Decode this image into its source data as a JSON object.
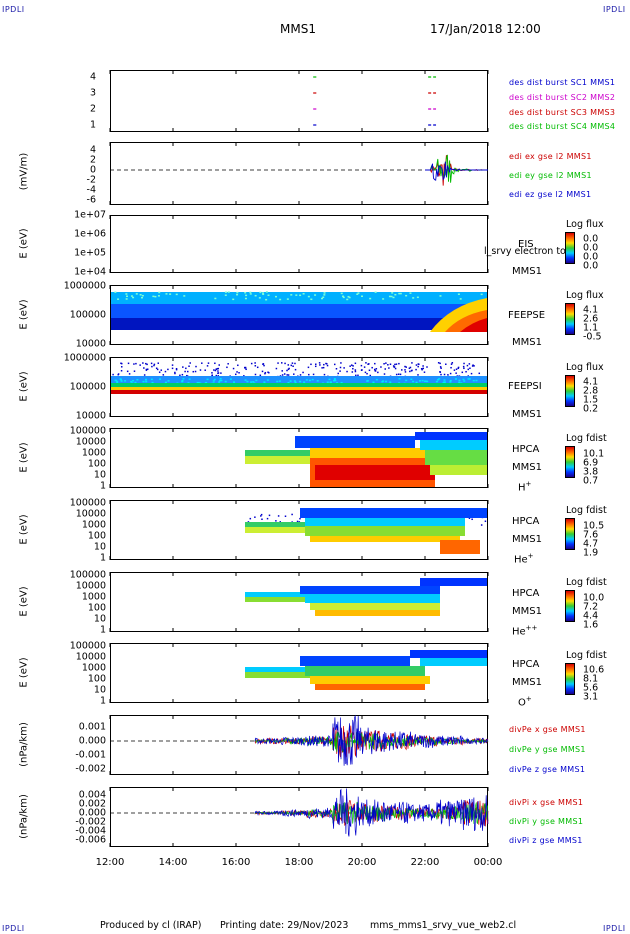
{
  "header": {
    "corner_tl": "IPDLI",
    "corner_tr": "IPDLI",
    "corner_bl": "IPDLI",
    "corner_br": "IPDLI",
    "spacecraft": "MMS1",
    "datetime": "17/Jan/2018 12:00"
  },
  "footer": {
    "produced_by": "Produced by cl (IRAP)",
    "printing_date": "Printing date: 29/Nov/2023",
    "product": "mms_mms1_srvy_vue_web2.cl"
  },
  "x_axis": {
    "ticks": [
      "12:00",
      "14:00",
      "16:00",
      "18:00",
      "20:00",
      "22:00",
      "00:00"
    ],
    "range_hours": [
      12,
      24
    ]
  },
  "panels": {
    "p1": {
      "yticks": [
        "4",
        "3",
        "2",
        "1"
      ],
      "legend": [
        "des dist burst SC1 MMS1",
        "des dist burst SC2 MMS2",
        "des dist burst SC3 MMS3",
        "des dist burst SC4 MMS4"
      ],
      "legend_colors": [
        "#0000cc",
        "#cc00cc",
        "#cc0000",
        "#00bb00"
      ]
    },
    "p2": {
      "ylabel": "(mV/m)",
      "yticks": [
        "4",
        "2",
        "0",
        "-2",
        "-4",
        "-6"
      ],
      "legend": [
        "edi ex gse l2 MMS1",
        "edi ey gse l2 MMS1",
        "edi ez gse l2 MMS1"
      ],
      "legend_colors": [
        "#cc0000",
        "#00bb00",
        "#0000cc"
      ]
    },
    "p3": {
      "ylabel": "E (eV)",
      "yticks": [
        "1e+07",
        "1e+06",
        "1e+05",
        "1e+04"
      ],
      "instrument": "EIS",
      "overlay": "l_srvy electron to",
      "spacecraft": "MMS1",
      "cb_title": "Log flux",
      "cb_values": [
        "0.0",
        "0.0",
        "0.0",
        "0.0"
      ]
    },
    "p4": {
      "ylabel": "E (eV)",
      "yticks": [
        "1000000",
        "100000",
        "10000"
      ],
      "instrument": "FEEPSE",
      "spacecraft": "MMS1",
      "cb_title": "Log flux",
      "cb_values": [
        "4.1",
        "2.6",
        "1.1",
        "-0.5"
      ]
    },
    "p5": {
      "ylabel": "E (eV)",
      "yticks": [
        "1000000",
        "100000",
        "10000"
      ],
      "instrument": "FEEPSI",
      "spacecraft": "MMS1",
      "cb_title": "Log flux",
      "cb_values": [
        "4.1",
        "2.8",
        "1.5",
        "0.2"
      ]
    },
    "p6": {
      "ylabel": "E (eV)",
      "yticks": [
        "100000",
        "10000",
        "1000",
        "100",
        "10",
        "1"
      ],
      "instrument": "HPCA",
      "spacecraft": "MMS1",
      "species": "H",
      "species_sup": "+",
      "cb_title": "Log fdist",
      "cb_values": [
        "10.1",
        "6.9",
        "3.8",
        "0.7"
      ]
    },
    "p7": {
      "ylabel": "E (eV)",
      "yticks": [
        "100000",
        "10000",
        "1000",
        "100",
        "10",
        "1"
      ],
      "instrument": "HPCA",
      "spacecraft": "MMS1",
      "species": "He",
      "species_sup": "+",
      "cb_title": "Log fdist",
      "cb_values": [
        "10.5",
        "7.6",
        "4.7",
        "1.9"
      ]
    },
    "p8": {
      "ylabel": "E (eV)",
      "yticks": [
        "100000",
        "10000",
        "1000",
        "100",
        "10",
        "1"
      ],
      "instrument": "HPCA",
      "spacecraft": "MMS1",
      "species": "He",
      "species_sup": "++",
      "cb_title": "Log fdist",
      "cb_values": [
        "10.0",
        "7.2",
        "4.4",
        "1.6"
      ]
    },
    "p9": {
      "ylabel": "E (eV)",
      "yticks": [
        "100000",
        "10000",
        "1000",
        "100",
        "10",
        "1"
      ],
      "instrument": "HPCA",
      "spacecraft": "MMS1",
      "species": "O",
      "species_sup": "+",
      "cb_title": "Log fdist",
      "cb_values": [
        "10.6",
        "8.1",
        "5.6",
        "3.1"
      ]
    },
    "p10": {
      "ylabel": "(nPa/km)",
      "yticks": [
        "0.001",
        "0.000",
        "-0.001",
        "-0.002"
      ],
      "legend": [
        "divPe x gse MMS1",
        "divPe y gse MMS1",
        "divPe z gse MMS1"
      ],
      "legend_colors": [
        "#cc0000",
        "#00bb00",
        "#0000cc"
      ]
    },
    "p11": {
      "ylabel": "(nPa/km)",
      "yticks": [
        "0.004",
        "0.002",
        "0.000",
        "-0.002",
        "-0.004",
        "-0.006"
      ],
      "legend": [
        "divPi x gse MMS1",
        "divPi y gse MMS1",
        "divPi z gse MMS1"
      ],
      "legend_colors": [
        "#cc0000",
        "#00bb00",
        "#0000cc"
      ]
    }
  },
  "chart_data": [
    {
      "type": "line",
      "panel": "burst availability",
      "x_range": [
        12,
        24
      ],
      "yticks": [
        1,
        2,
        3,
        4
      ],
      "series": [
        {
          "name": "des dist burst SC1 MMS1",
          "y": 1,
          "segments": [
            [
              18.45,
              18.55
            ],
            [
              22.1,
              22.35
            ]
          ]
        },
        {
          "name": "des dist burst SC2 MMS2",
          "y": 2,
          "segments": [
            [
              18.45,
              18.55
            ],
            [
              22.1,
              22.35
            ]
          ]
        },
        {
          "name": "des dist burst SC3 MMS3",
          "y": 3,
          "segments": [
            [
              18.45,
              18.55
            ],
            [
              22.1,
              22.35
            ]
          ]
        },
        {
          "name": "des dist burst SC4 MMS4",
          "y": 4,
          "segments": [
            [
              18.45,
              18.55
            ],
            [
              22.1,
              22.35
            ]
          ]
        }
      ]
    },
    {
      "type": "line",
      "panel": "EDI E field",
      "ylabel": "(mV/m)",
      "ylim": [
        -6,
        5
      ],
      "x_range": [
        12,
        24
      ],
      "data_start_hour": 22.0,
      "series": [
        {
          "name": "edi ex gse l2 MMS1",
          "values": [
            0,
            1.2,
            -2.5,
            3.5,
            -1.5,
            1.0,
            0.5,
            -0.5,
            0.3,
            0.2,
            0.0
          ]
        },
        {
          "name": "edi ey gse l2 MMS1",
          "values": [
            0,
            -1.0,
            2.5,
            4.0,
            -3.0,
            1.5,
            0.4,
            0.8,
            0.1,
            -0.2,
            0.1
          ]
        },
        {
          "name": "edi ez gse l2 MMS1",
          "values": [
            0,
            -3.5,
            1.5,
            -2.0,
            0.5,
            -0.8,
            0.2,
            -0.3,
            0.0,
            0.1,
            0.0
          ]
        }
      ]
    },
    {
      "type": "line",
      "panel": "divergence of electron pressure",
      "ylabel": "(nPa/km)",
      "ylim": [
        -0.0025,
        0.0015
      ],
      "x_range": [
        12,
        24
      ],
      "data_start_hour": 16.6,
      "series": [
        {
          "name": "divPe x gse MMS1",
          "envelope": [
            0.0002,
            0.0002,
            0.0003,
            0.0012,
            0.0008,
            0.0006,
            0.0004,
            0.0003,
            0.0002
          ]
        },
        {
          "name": "divPe y gse MMS1",
          "envelope": [
            0.0001,
            0.0002,
            0.0003,
            0.0008,
            0.0006,
            0.0004,
            0.0003,
            0.0002,
            0.0001
          ]
        },
        {
          "name": "divPe z gse MMS1",
          "envelope": [
            0.0002,
            0.0003,
            0.0004,
            0.0019,
            0.001,
            0.0007,
            0.0005,
            0.0004,
            0.0002
          ]
        }
      ]
    },
    {
      "type": "line",
      "panel": "divergence of ion pressure",
      "ylabel": "(nPa/km)",
      "ylim": [
        -0.007,
        0.005
      ],
      "x_range": [
        12,
        24
      ],
      "data_start_hour": 16.6,
      "series": [
        {
          "name": "divPi x gse MMS1",
          "envelope": [
            0.0003,
            0.0005,
            0.001,
            0.003,
            0.002,
            0.0015,
            0.0012,
            0.0018,
            0.003
          ]
        },
        {
          "name": "divPi y gse MMS1",
          "envelope": [
            0.0002,
            0.0004,
            0.0008,
            0.0025,
            0.0018,
            0.0012,
            0.001,
            0.0015,
            0.0025
          ]
        },
        {
          "name": "divPi z gse MMS1",
          "envelope": [
            0.0004,
            0.0008,
            0.0012,
            0.0055,
            0.003,
            0.0025,
            0.002,
            0.003,
            0.004
          ]
        }
      ]
    },
    {
      "type": "heatmap",
      "panel": "FEEPS electron spectrogram",
      "ylabel": "E (eV)",
      "y_log_range": [
        10000,
        1000000
      ],
      "x_range": [
        12,
        24
      ],
      "colorbar": {
        "title": "Log flux",
        "range": [
          -0.5,
          4.1
        ]
      }
    },
    {
      "type": "heatmap",
      "panel": "FEEPS ion spectrogram",
      "ylabel": "E (eV)",
      "y_log_range": [
        10000,
        1000000
      ],
      "x_range": [
        12,
        24
      ],
      "colorbar": {
        "title": "Log flux",
        "range": [
          0.2,
          4.1
        ]
      }
    },
    {
      "type": "heatmap",
      "panel": "HPCA spectrograms",
      "ylabel": "E (eV)",
      "y_log_range": [
        1,
        100000
      ],
      "x_range": [
        12,
        24
      ],
      "data_start_hour": 16.3,
      "species": [
        "H+",
        "He+",
        "He++",
        "O+"
      ]
    }
  ]
}
